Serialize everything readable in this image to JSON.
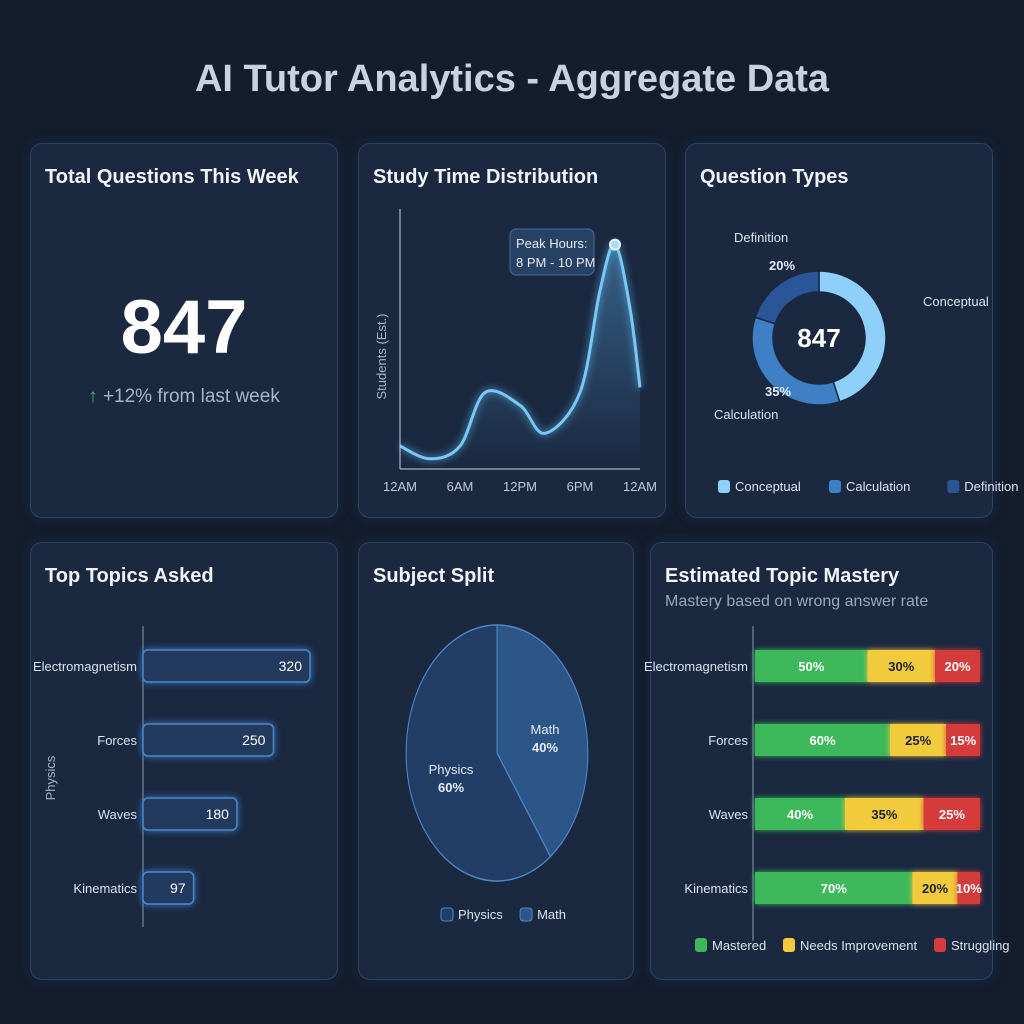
{
  "title": "AI Tutor Analytics - Aggregate Data",
  "total": {
    "title": "Total Questions This Week",
    "value": "847",
    "change": "+12% from last week",
    "arrow": "↑",
    "accent": "#3fbf6a"
  },
  "chart_data": [
    {
      "type": "line",
      "title": "Study Time Distribution",
      "ylabel": "Students (Est.)",
      "x": [
        0,
        3,
        6,
        8.5,
        12,
        14.5,
        18,
        20,
        21.5,
        23,
        24
      ],
      "y": [
        9,
        4,
        9,
        30,
        25,
        14,
        30,
        70,
        88,
        63,
        32
      ],
      "xticks": [
        "12AM",
        "6AM",
        "12PM",
        "6PM",
        "12AM"
      ],
      "xlim": [
        0,
        24
      ],
      "ylim": [
        0,
        100
      ],
      "annotation": "Peak Hours:\n8 PM - 10 PM",
      "annotation_lines": [
        "Peak Hours:",
        "8 PM - 10 PM"
      ],
      "color": "#7cc8f5"
    },
    {
      "type": "pie",
      "subtype": "donut",
      "title": "Question Types",
      "center_label": "847",
      "categories": [
        "Conceptual",
        "Calculation",
        "Definition"
      ],
      "values": [
        45,
        35,
        20
      ],
      "labels": [
        "45%",
        "35%",
        "20%"
      ],
      "colors": [
        "#8fd0fa",
        "#3f7fc6",
        "#2a5596"
      ],
      "legend": "bottom"
    },
    {
      "type": "bar",
      "orientation": "horizontal",
      "title": "Top Topics Asked",
      "ylabel": "Physics",
      "categories": [
        "Electromagnetism",
        "Forces",
        "Waves",
        "Kinematics"
      ],
      "values": [
        320,
        250,
        180,
        97
      ]
    },
    {
      "type": "pie",
      "title": "Subject Split",
      "categories": [
        "Physics",
        "Math"
      ],
      "values": [
        60,
        40
      ],
      "labels": [
        "60%",
        "40%"
      ],
      "colors": [
        "#223d66",
        "#2d5688"
      ],
      "legend": "bottom"
    },
    {
      "type": "bar",
      "orientation": "horizontal",
      "stacked": true,
      "title": "Estimated Topic Mastery",
      "subtitle": "Mastery based on wrong answer rate",
      "categories": [
        "Electromagnetism",
        "Forces",
        "Waves",
        "Kinematics"
      ],
      "series": [
        {
          "name": "Mastered",
          "values": [
            50,
            60,
            40,
            70
          ],
          "color": "#3db85a"
        },
        {
          "name": "Needs Improvement",
          "values": [
            30,
            25,
            35,
            20
          ],
          "color": "#f2cb3c"
        },
        {
          "name": "Struggling",
          "values": [
            20,
            15,
            25,
            10
          ],
          "color": "#d63b3b"
        }
      ],
      "legend": "bottom"
    }
  ]
}
